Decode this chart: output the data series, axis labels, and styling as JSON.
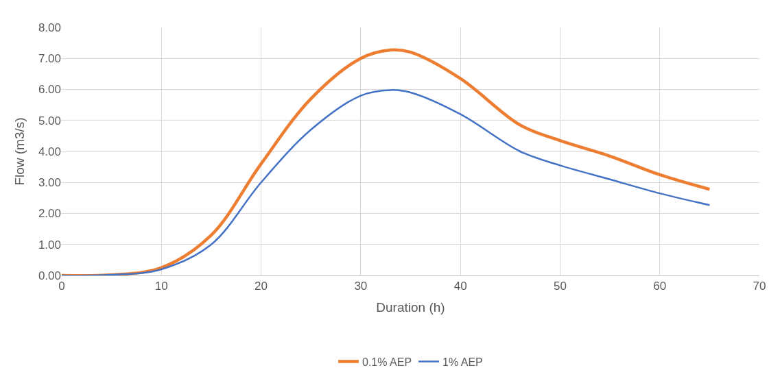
{
  "chart_data": {
    "type": "line",
    "xlabel": "Duration (h)",
    "ylabel": "Flow (m3/s)",
    "x": [
      0,
      5,
      10,
      15,
      20,
      25,
      30,
      33,
      35,
      40,
      46,
      50,
      55,
      60,
      65
    ],
    "series": [
      {
        "name": "0.1% AEP",
        "color": "#ed7d31",
        "values": [
          0,
          0.02,
          0.25,
          1.3,
          3.6,
          5.7,
          7.0,
          7.27,
          7.2,
          6.35,
          4.85,
          4.35,
          3.85,
          3.25,
          2.78
        ]
      },
      {
        "name": "1% AEP",
        "color": "#4472c4",
        "values": [
          0,
          0.02,
          0.2,
          1.0,
          3.0,
          4.7,
          5.8,
          5.98,
          5.9,
          5.2,
          4.0,
          3.55,
          3.1,
          2.65,
          2.27
        ]
      }
    ],
    "xlim": [
      0,
      70
    ],
    "xticks": [
      0,
      10,
      20,
      30,
      40,
      50,
      60,
      70
    ],
    "ylim": [
      0,
      8
    ],
    "yticks": [
      {
        "value": 0,
        "label": "0.00"
      },
      {
        "value": 1,
        "label": "1.00"
      },
      {
        "value": 2,
        "label": "2.00"
      },
      {
        "value": 3,
        "label": "3.00"
      },
      {
        "value": 4,
        "label": "4.00"
      },
      {
        "value": 5,
        "label": "5.00"
      },
      {
        "value": 6,
        "label": "6.00"
      },
      {
        "value": 7,
        "label": "7.00"
      },
      {
        "value": 8,
        "label": "8.00"
      }
    ],
    "grid": true,
    "legend": "bottom",
    "marker": "none",
    "line_style": "solid"
  }
}
